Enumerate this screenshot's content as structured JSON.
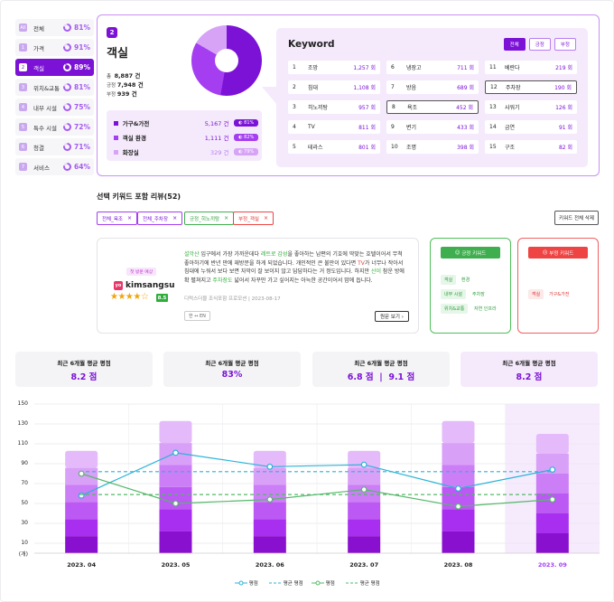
{
  "sidebar": {
    "items": [
      {
        "num": "All",
        "label": "전체",
        "pct": "81%"
      },
      {
        "num": "1",
        "label": "가격",
        "pct": "91%"
      },
      {
        "num": "2",
        "label": "객실",
        "pct": "89%"
      },
      {
        "num": "3",
        "label": "위치&교통",
        "pct": "81%"
      },
      {
        "num": "4",
        "label": "내부 시설",
        "pct": "75%"
      },
      {
        "num": "5",
        "label": "특수 시설",
        "pct": "72%"
      },
      {
        "num": "6",
        "label": "청결",
        "pct": "71%"
      },
      {
        "num": "7",
        "label": "서비스",
        "pct": "64%"
      }
    ],
    "active_index": 2
  },
  "category": {
    "badge": "2",
    "title": "객실",
    "total_label": "총",
    "total_value": "8,887 건",
    "pos_label": "긍정",
    "pos_value": "7,948 건",
    "neg_label": "부정",
    "neg_value": "939 건",
    "subs": [
      {
        "name": "가구&가전",
        "count": "5,167 건",
        "pct": "81%",
        "color": "#7b12d6"
      },
      {
        "name": "객실 환경",
        "count": "1,111 건",
        "pct": "82%",
        "color": "#a43ef0"
      },
      {
        "name": "화장실",
        "count": "329 건",
        "pct": "79%",
        "color": "#d6a3f7"
      }
    ]
  },
  "keyword": {
    "title": "Keyword",
    "tabs": [
      "전체",
      "긍정",
      "부정"
    ],
    "items": [
      {
        "n": "1",
        "word": "조망",
        "count": "1,257 회"
      },
      {
        "n": "2",
        "word": "침대",
        "count": "1,108 회"
      },
      {
        "n": "3",
        "word": "히노끼탕",
        "count": "957 회"
      },
      {
        "n": "4",
        "word": "TV",
        "count": "811 회"
      },
      {
        "n": "5",
        "word": "테라스",
        "count": "801 회"
      },
      {
        "n": "6",
        "word": "냉장고",
        "count": "711 회"
      },
      {
        "n": "7",
        "word": "방음",
        "count": "689 회"
      },
      {
        "n": "8",
        "word": "욕조",
        "count": "452 회"
      },
      {
        "n": "9",
        "word": "변기",
        "count": "433 회"
      },
      {
        "n": "10",
        "word": "조명",
        "count": "398 회"
      },
      {
        "n": "11",
        "word": "베란다",
        "count": "219 회"
      },
      {
        "n": "12",
        "word": "주차장",
        "count": "190 회"
      },
      {
        "n": "13",
        "word": "샤워기",
        "count": "126 회"
      },
      {
        "n": "14",
        "word": "금연",
        "count": "91 회"
      },
      {
        "n": "15",
        "word": "구조",
        "count": "82 회"
      }
    ]
  },
  "review_section": {
    "title": "선택 키워드 포함 리뷰(52)",
    "chips": [
      {
        "label": "전체_욕조",
        "x": "×"
      },
      {
        "label": "전체_주차장",
        "x": "×"
      },
      {
        "label": "긍정_히노끼탕",
        "x": "×"
      },
      {
        "label": "부정_객실",
        "x": "×"
      }
    ],
    "delete_all": "키워드 전체 삭제"
  },
  "review": {
    "tag": "첫 방문 예상",
    "site_icon": "yo",
    "user": "kimsangsu",
    "stars": "★★★★☆",
    "score": "8.5",
    "text_parts": [
      {
        "t": "설악산",
        "c": "#2fae3a"
      },
      {
        "t": " 입구에서 가장 가까운데다 ",
        "c": "#333"
      },
      {
        "t": "레트로 감성",
        "c": "#2fae3a"
      },
      {
        "t": "을 좋아하는 남편의 기호에 딱맞는 호텔이어서 무척 좋아하기에 반년 만에 재방문을 하게 되었습니다. 개인적인 큰 불만이 있다면 ",
        "c": "#333"
      },
      {
        "t": "TV",
        "c": "#e23b3b"
      },
      {
        "t": "가 너무나 작아서 침대에 누워서 보다 보면 자막이 잘 보이지 않고 답답하다는 거 정도입니다. 하지만 ",
        "c": "#333"
      },
      {
        "t": "산이",
        "c": "#2fae3a"
      },
      {
        "t": " 참운 방에 확 펼쳐지고 ",
        "c": "#333"
      },
      {
        "t": "주차장도",
        "c": "#2fae3a"
      },
      {
        "t": " 넓어서 자꾸만 가고 싶어지는 아늑한 공간이어서 맘에 듭니다.",
        "c": "#333"
      }
    ],
    "meta": "디럭스더블 조식포함 프로모션 | 2023-08-17",
    "lang": "한 ↔ EN",
    "more": "원문 보기 ›"
  },
  "pos_keywords": {
    "title": "긍정 키워드",
    "chips": [
      [
        "객실",
        "환경"
      ],
      [
        "내부 시설",
        "주차장"
      ],
      [
        "위치&교통",
        "자연 인프라"
      ]
    ]
  },
  "neg_keywords": {
    "title": "부정 키워드",
    "chips": [
      [
        "객실",
        "가구&가전"
      ]
    ]
  },
  "summary": [
    {
      "title": "최근 6개월 평균 평점",
      "value": "8.2 점"
    },
    {
      "title": "최근 6개월 평균 평점",
      "value": "83%"
    },
    {
      "title": "최근 6개월 평균 평점",
      "value": "6.8 점  |  9.1 점"
    },
    {
      "title": "최근 6개월 평균 평점",
      "value": "8.2 점"
    }
  ],
  "chart_data": {
    "type": "bar",
    "categories": [
      "2023. 04",
      "2023. 05",
      "2023. 06",
      "2023. 07",
      "2023. 08",
      "2023. 09"
    ],
    "highlight_category": "2023. 09",
    "y_ticks": [
      "150",
      "130",
      "110",
      "90",
      "70",
      "50",
      "30",
      "10",
      "(개)"
    ],
    "ylim": [
      0,
      150
    ],
    "bar_totals": [
      103,
      133,
      103,
      103,
      133,
      120
    ],
    "bar_segments": 6,
    "segment_colors": [
      "#8a10cf",
      "#a82ef0",
      "#bc58f3",
      "#cb7ef6",
      "#d9a0f8",
      "#e4bafa"
    ],
    "series": [
      {
        "name": "평점",
        "values": [
          58,
          101,
          87,
          89,
          65,
          84
        ],
        "color": "#2bb3d8",
        "style": "line"
      },
      {
        "name": "평균 평점",
        "values": [
          82,
          82,
          82,
          82,
          82,
          82
        ],
        "color": "#2bb3d8",
        "style": "dashed"
      },
      {
        "name": "평점",
        "values": [
          80,
          50,
          54,
          64,
          47,
          54
        ],
        "color": "#55b86a",
        "style": "line"
      },
      {
        "name": "평균 평점",
        "values": [
          59,
          59,
          59,
          59,
          59,
          59
        ],
        "color": "#55b86a",
        "style": "dashed"
      }
    ]
  }
}
